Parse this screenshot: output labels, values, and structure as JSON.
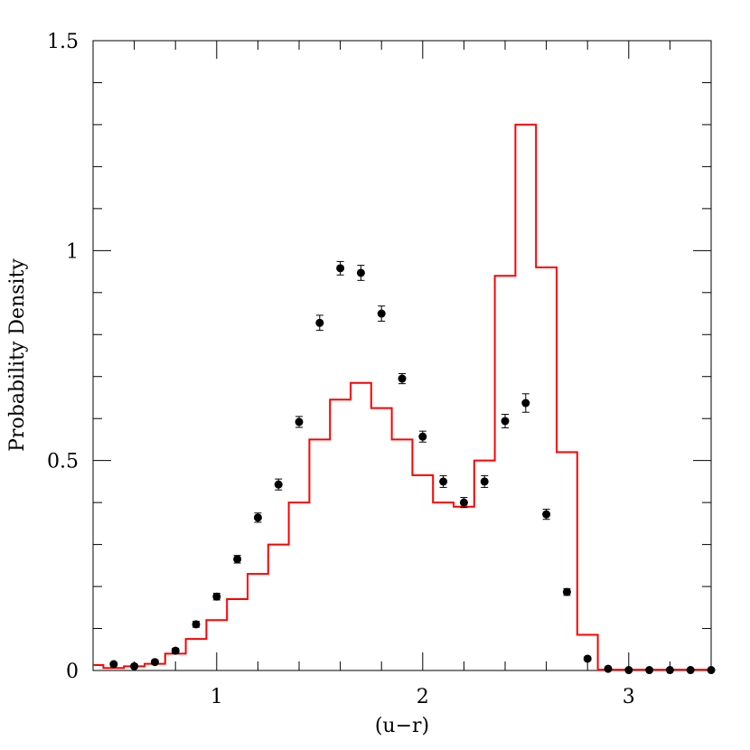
{
  "chart_data": {
    "type": "scatter",
    "title": "",
    "xlabel": "(u−r)",
    "ylabel": "Probability Density",
    "xlim": [
      0.4,
      3.4
    ],
    "ylim": [
      0,
      1.5
    ],
    "grid": false,
    "x_ticks": [
      {
        "v": 1,
        "label": "1"
      },
      {
        "v": 2,
        "label": "2"
      },
      {
        "v": 3,
        "label": "3"
      }
    ],
    "y_ticks": [
      {
        "v": 0,
        "label": "0"
      },
      {
        "v": 0.5,
        "label": "0.5"
      },
      {
        "v": 1,
        "label": "1"
      },
      {
        "v": 1.5,
        "label": "1.5"
      }
    ],
    "series": [
      {
        "kind": "points_with_errors",
        "color": "#000000",
        "x": [
          0.5,
          0.6,
          0.7,
          0.8,
          0.9,
          1.0,
          1.1,
          1.2,
          1.3,
          1.4,
          1.5,
          1.6,
          1.7,
          1.8,
          1.9,
          2.0,
          2.1,
          2.2,
          2.3,
          2.4,
          2.5,
          2.6,
          2.7,
          2.8,
          2.9,
          3.0,
          3.1,
          3.2,
          3.3,
          3.4
        ],
        "y": [
          0.015,
          0.01,
          0.02,
          0.047,
          0.11,
          0.176,
          0.265,
          0.364,
          0.443,
          0.592,
          0.828,
          0.958,
          0.947,
          0.85,
          0.695,
          0.557,
          0.45,
          0.4,
          0.45,
          0.594,
          0.637,
          0.372,
          0.187,
          0.028,
          0.004,
          0.001,
          0.001,
          0.001,
          0.001,
          0.001
        ],
        "err": [
          0.004,
          0.004,
          0.005,
          0.006,
          0.007,
          0.008,
          0.009,
          0.011,
          0.013,
          0.013,
          0.018,
          0.016,
          0.018,
          0.018,
          0.012,
          0.013,
          0.014,
          0.012,
          0.014,
          0.016,
          0.022,
          0.012,
          0.008,
          0.004,
          0.002,
          0.001,
          0.001,
          0.001,
          0.001,
          0.001
        ]
      },
      {
        "kind": "histogram",
        "color": "#ff0000",
        "edges": [
          0.4,
          0.45,
          0.55,
          0.65,
          0.75,
          0.85,
          0.95,
          1.05,
          1.15,
          1.25,
          1.35,
          1.45,
          1.55,
          1.65,
          1.75,
          1.85,
          1.95,
          2.05,
          2.15,
          2.25,
          2.35,
          2.45,
          2.55,
          2.65,
          2.75,
          2.85,
          2.95,
          3.05,
          3.15,
          3.25,
          3.35,
          3.4
        ],
        "values": [
          0.013,
          0.006,
          0.01,
          0.016,
          0.04,
          0.075,
          0.12,
          0.17,
          0.23,
          0.3,
          0.4,
          0.55,
          0.645,
          0.685,
          0.625,
          0.55,
          0.465,
          0.4,
          0.39,
          0.5,
          0.94,
          1.3,
          0.96,
          0.52,
          0.085,
          0.002,
          0.002,
          0.002,
          0.002,
          0.002,
          0.002
        ]
      }
    ]
  }
}
